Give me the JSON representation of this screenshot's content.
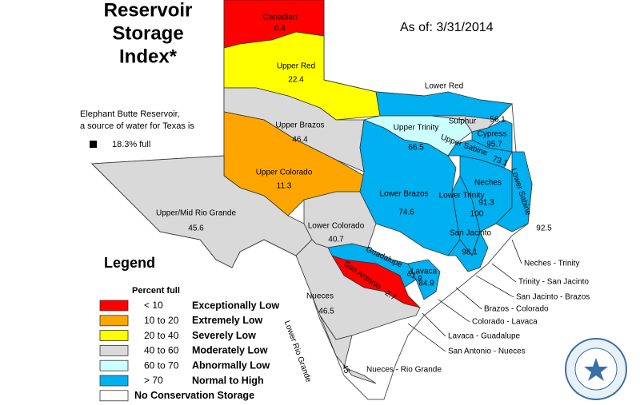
{
  "title": [
    "Reservoir",
    "Storage",
    "Index*"
  ],
  "date": "As of: 3/31/2014",
  "note": {
    "lines": [
      "Elephant Butte Reservoir,",
      "a source of water for Texas is"
    ],
    "status": "18.3% full"
  },
  "regions": [
    {
      "name": "Canadian",
      "value": 0.4,
      "color": "#ff0000"
    },
    {
      "name": "Upper Red",
      "value": 22.4,
      "color": "#ffff00"
    },
    {
      "name": "Lower Red",
      "color": "#00b0f0"
    },
    {
      "name": "Upper Brazos",
      "value": 46.4,
      "color": "#d9d9d9"
    },
    {
      "name": "Upper Colorado",
      "value": 11.3,
      "color": "#ffa500"
    },
    {
      "name": "Upper/Mid Rio Grande",
      "value": 45.6,
      "color": "#d9d9d9"
    },
    {
      "name": "Lower Colorado",
      "value": 40.7,
      "color": "#d9d9d9"
    },
    {
      "name": "Lower Brazos",
      "value": 74.6,
      "color": "#00b0f0"
    },
    {
      "name": "Upper Trinity",
      "value": 66.5,
      "color": "#ccffff"
    },
    {
      "name": "Sulphur",
      "value": 56.1,
      "color": "#d9d9d9"
    },
    {
      "name": "Cypress",
      "value": 95.7,
      "color": "#00b0f0"
    },
    {
      "name": "Upper Sabine",
      "value": 73.1,
      "color": "#00b0f0"
    },
    {
      "name": "Neches",
      "value": 91.3,
      "color": "#00b0f0"
    },
    {
      "name": "Lower Trinity",
      "value": 100,
      "color": "#00b0f0"
    },
    {
      "name": "San Jacinto",
      "value": 98.1,
      "color": "#00b0f0"
    },
    {
      "name": "Lower Sabine",
      "value": 92.5,
      "color": "#00b0f0"
    },
    {
      "name": "Guadalupe",
      "value": 81.9,
      "color": "#00b0f0"
    },
    {
      "name": "San Antonio",
      "value": 2.7,
      "color": "#ff0000"
    },
    {
      "name": "Lavaca",
      "value": 84.9,
      "color": "#00b0f0"
    },
    {
      "name": "Nueces",
      "value": 46.5,
      "color": "#d9d9d9"
    },
    {
      "name": "Lower Rio Grande",
      "value": 45,
      "color": "#d9d9d9"
    }
  ],
  "coastal_basins": [
    "Neches - Trinity",
    "Trinity - San Jacinto",
    "San Jacinto - Brazos",
    "Brazos - Colorado",
    "Colorado - Lavaca",
    "Lavaca - Guadalupe",
    "San Antonio - Nueces",
    "Nueces - Rio Grande"
  ],
  "legend": {
    "title": "Legend",
    "subtitle": "Percent full",
    "items": [
      {
        "range": "< 10",
        "label": "Exceptionally Low",
        "color": "#ff0000"
      },
      {
        "range": "10 to 20",
        "label": "Extremely Low",
        "color": "#ffa500"
      },
      {
        "range": "20 to 40",
        "label": "Severely Low",
        "color": "#ffff00"
      },
      {
        "range": "40 to 60",
        "label": "Moderately Low",
        "color": "#d9d9d9"
      },
      {
        "range": "60 to 70",
        "label": "Abnormally Low",
        "color": "#ccffff"
      },
      {
        "range": "> 70",
        "label": "Normal to High",
        "color": "#00b0f0"
      },
      {
        "range": "",
        "label": "No Conservation Storage",
        "color": "#ffffff"
      }
    ]
  }
}
